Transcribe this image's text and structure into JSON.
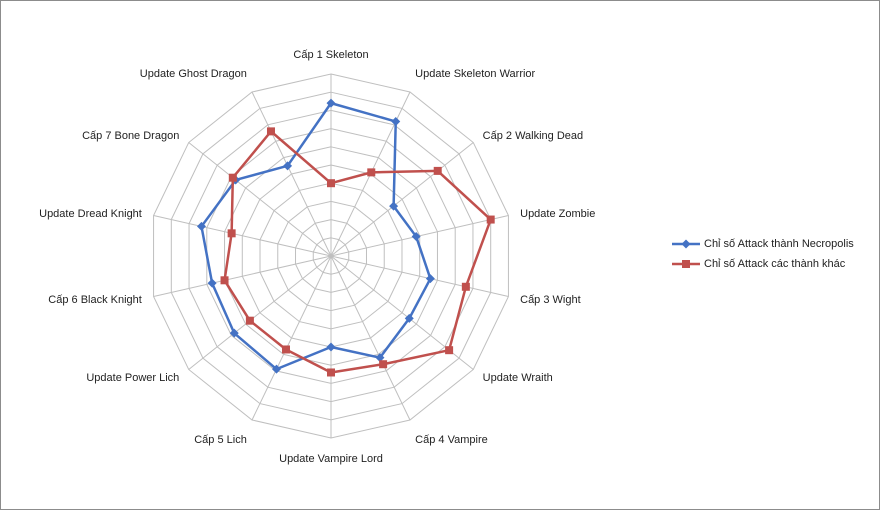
{
  "chart_data": {
    "type": "radar",
    "title": "",
    "categories": [
      "Cấp 1 Skeleton",
      "Update Skeleton Warrior",
      "Cấp 2 Walking Dead",
      "Update Zombie",
      "Cấp 3 Wight",
      "Update Wraith",
      "Cấp 4 Vampire",
      "Update Vampire Lord",
      "Cấp 5 Lich",
      "Update Power Lich",
      "Cấp 6 Black Knight",
      "Update Dread Knight",
      "Cấp 7 Bone Dragon",
      "Update Ghost Dragon"
    ],
    "series": [
      {
        "name": "Chỉ số Attack thành Necropolis",
        "color": "#4472C4",
        "marker": "diamond",
        "values": [
          8.4,
          8.2,
          4.4,
          4.8,
          5.6,
          5.5,
          6.2,
          5.0,
          6.9,
          6.8,
          6.7,
          7.3,
          6.7,
          5.5
        ]
      },
      {
        "name": "Chỉ số Attack các thành khác",
        "color": "#C0504D",
        "marker": "square",
        "values": [
          4.0,
          5.1,
          7.5,
          9.0,
          7.6,
          8.3,
          6.6,
          6.4,
          5.7,
          5.7,
          6.0,
          5.6,
          6.9,
          7.6
        ]
      }
    ],
    "rlim": [
      0,
      10
    ],
    "rings": 10,
    "grid": true,
    "legend": "right"
  }
}
